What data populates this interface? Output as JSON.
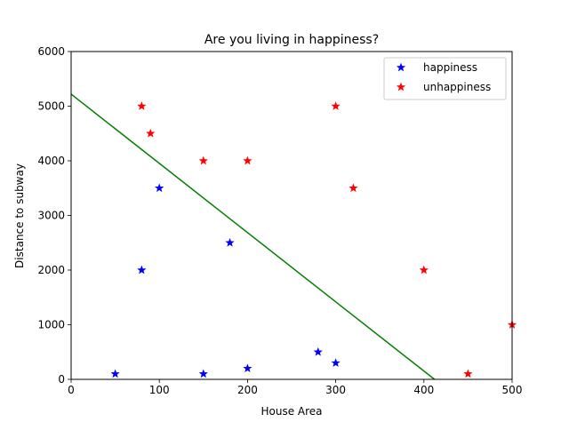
{
  "chart_data": {
    "type": "scatter",
    "title": "Are you living in happiness?",
    "xlabel": "House Area",
    "ylabel": "Distance to subway",
    "xlim": [
      0,
      500
    ],
    "ylim": [
      0,
      6000
    ],
    "x_ticks": [
      0,
      100,
      200,
      300,
      400,
      500
    ],
    "y_ticks": [
      0,
      1000,
      2000,
      3000,
      4000,
      5000,
      6000
    ],
    "grid": false,
    "legend_position": "top-right",
    "series": [
      {
        "name": "happiness",
        "color": "#0000ff",
        "marker": "star",
        "points": [
          {
            "x": 50,
            "y": 100
          },
          {
            "x": 80,
            "y": 2000
          },
          {
            "x": 100,
            "y": 3500
          },
          {
            "x": 150,
            "y": 100
          },
          {
            "x": 180,
            "y": 2500
          },
          {
            "x": 200,
            "y": 200
          },
          {
            "x": 280,
            "y": 500
          },
          {
            "x": 300,
            "y": 300
          }
        ]
      },
      {
        "name": "unhappiness",
        "color": "#ff0000",
        "marker": "star",
        "points": [
          {
            "x": 80,
            "y": 5000
          },
          {
            "x": 90,
            "y": 4500
          },
          {
            "x": 150,
            "y": 4000
          },
          {
            "x": 200,
            "y": 4000
          },
          {
            "x": 300,
            "y": 5000
          },
          {
            "x": 320,
            "y": 3500
          },
          {
            "x": 400,
            "y": 2000
          },
          {
            "x": 450,
            "y": 100
          },
          {
            "x": 500,
            "y": 1000
          }
        ]
      }
    ],
    "decision_line": {
      "color": "#008000",
      "start": {
        "x": 0,
        "y": 5220
      },
      "end": {
        "x": 412,
        "y": 0
      }
    }
  }
}
